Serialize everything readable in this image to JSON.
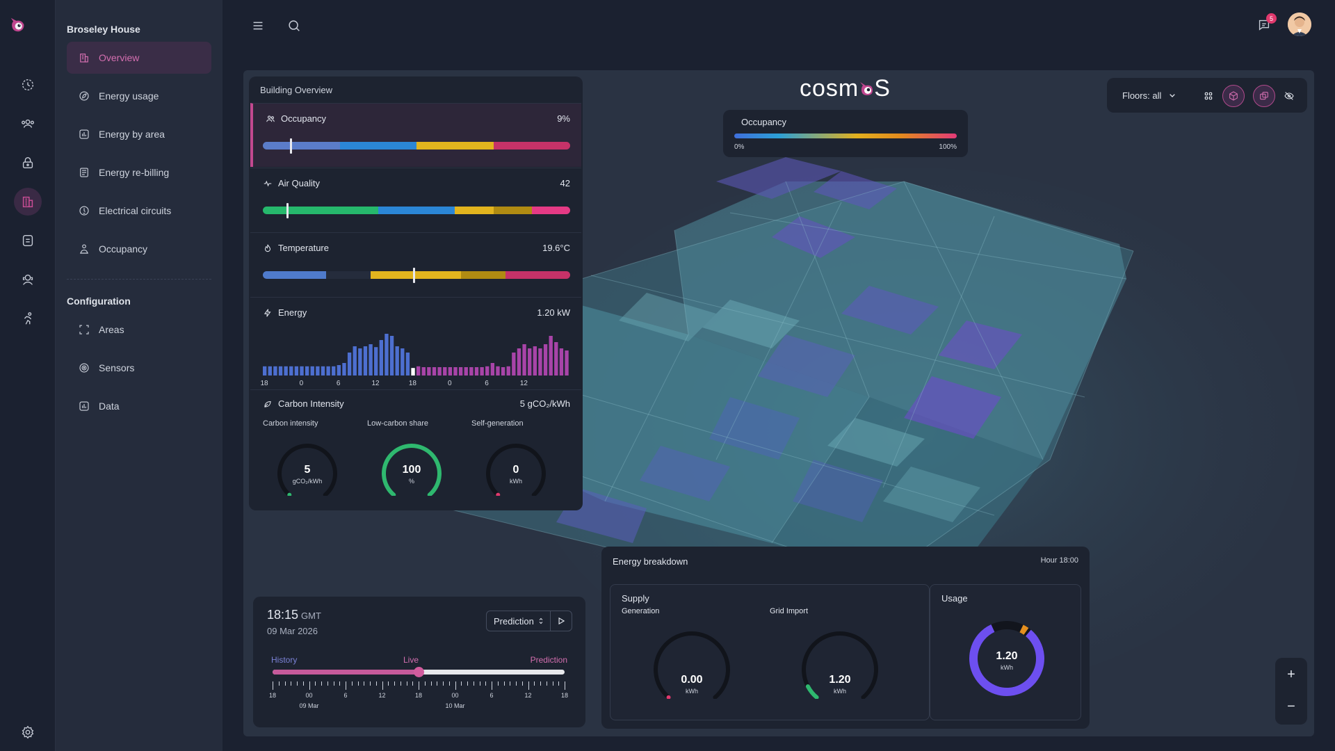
{
  "sidebar": {
    "site_name": "Broseley House",
    "items": [
      {
        "label": "Overview",
        "icon": "building-icon",
        "active": true
      },
      {
        "label": "Energy usage",
        "icon": "leaf-icon"
      },
      {
        "label": "Energy by area",
        "icon": "bar-chart-icon"
      },
      {
        "label": "Energy re-billing",
        "icon": "invoice-icon"
      },
      {
        "label": "Electrical circuits",
        "icon": "circuit-icon"
      },
      {
        "label": "Occupancy",
        "icon": "people-icon"
      }
    ],
    "config_title": "Configuration",
    "config_items": [
      {
        "label": "Areas",
        "icon": "areas-icon"
      },
      {
        "label": "Sensors",
        "icon": "sensor-icon"
      },
      {
        "label": "Data",
        "icon": "data-icon"
      }
    ]
  },
  "topbar": {
    "notification_count": "5"
  },
  "brand": {
    "name_left": "cosm",
    "name_right": "S"
  },
  "building_overview": {
    "title": "Building Overview",
    "occupancy": {
      "label": "Occupancy",
      "value": "9%",
      "marker_fraction": 0.09
    },
    "air_quality": {
      "label": "Air Quality",
      "value": "42",
      "marker_fraction": 0.08
    },
    "temperature": {
      "label": "Temperature",
      "value": "19.6°C",
      "marker_fraction": 0.49
    },
    "energy": {
      "label": "Energy",
      "value": "1.20 kW",
      "ticks": [
        "18",
        "0",
        "6",
        "12",
        "18",
        "0",
        "6",
        "12"
      ],
      "bars": [
        0.22,
        0.22,
        0.22,
        0.22,
        0.22,
        0.22,
        0.22,
        0.22,
        0.22,
        0.22,
        0.22,
        0.22,
        0.22,
        0.22,
        0.25,
        0.3,
        0.55,
        0.7,
        0.65,
        0.7,
        0.75,
        0.68,
        0.85,
        1.0,
        0.95,
        0.7,
        0.65,
        0.55,
        0.18,
        0.22,
        0.2,
        0.2,
        0.2,
        0.2,
        0.2,
        0.2,
        0.2,
        0.2,
        0.2,
        0.2,
        0.2,
        0.2,
        0.22,
        0.3,
        0.22,
        0.2,
        0.22,
        0.55,
        0.65,
        0.75,
        0.65,
        0.7,
        0.65,
        0.75,
        0.95,
        0.8,
        0.65,
        0.6
      ],
      "highlight_index": 28
    },
    "carbon": {
      "label": "Carbon Intensity",
      "value": "5 gCO₂/kWh",
      "gauges": [
        {
          "title": "Carbon intensity",
          "value": "5",
          "unit": "gCO₂/kWh",
          "fraction": 0.0,
          "color": "#2fb86f"
        },
        {
          "title": "Low-carbon share",
          "value": "100",
          "unit": "%",
          "fraction": 1.0,
          "color": "#2fb86f"
        },
        {
          "title": "Self-generation",
          "value": "0",
          "unit": "kWh",
          "fraction": 0.0,
          "color": "#e0396d"
        }
      ]
    }
  },
  "view_controls": {
    "floors_label": "Floors: all"
  },
  "occupancy_legend": {
    "label": "Occupancy",
    "min": "0%",
    "max": "100%"
  },
  "timeline": {
    "time": "18:15",
    "tz": "GMT",
    "date": "09 Mar 2026",
    "mode": "Prediction",
    "history_label": "History",
    "live_label": "Live",
    "prediction_label": "Prediction",
    "progress_fraction": 0.5,
    "hour_labels": [
      "18",
      "00",
      "6",
      "12",
      "18",
      "00",
      "6",
      "12",
      "18"
    ],
    "day_labels": [
      "09 Mar",
      "10 Mar"
    ]
  },
  "energy_breakdown": {
    "title": "Energy breakdown",
    "hour": "Hour 18:00",
    "supply_title": "Supply",
    "generation_label": "Generation",
    "generation_value": "0.00",
    "generation_unit": "kWh",
    "grid_label": "Grid Import",
    "grid_value": "1.20",
    "grid_unit": "kWh",
    "usage_title": "Usage",
    "usage_value": "1.20",
    "usage_unit": "kWh"
  },
  "zoom": {
    "in": "+",
    "out": "−"
  }
}
